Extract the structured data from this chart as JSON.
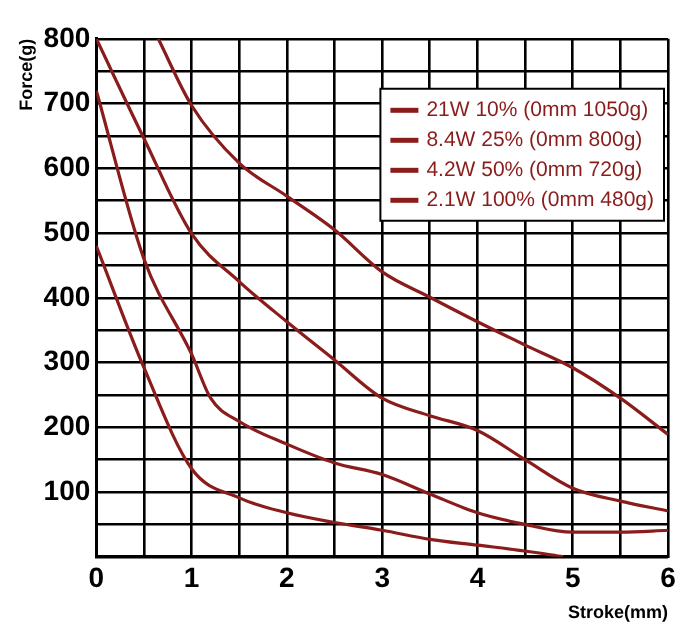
{
  "chart_data": {
    "type": "line",
    "xlabel": "Stroke(mm)",
    "ylabel": "Force(g)",
    "xlim": [
      0,
      6
    ],
    "ylim": [
      0,
      800
    ],
    "xticks": [
      0,
      {
        "value": 0.5,
        "label": null
      },
      1,
      {
        "value": 1.5,
        "label": null
      },
      2,
      {
        "value": 2.5,
        "label": null
      },
      3,
      {
        "value": 3.5,
        "label": null
      },
      4,
      {
        "value": 4.5,
        "label": null
      },
      5,
      {
        "value": 5.5,
        "label": null
      },
      6
    ],
    "yticks": [
      {
        "value": 0,
        "label": null
      },
      {
        "value": 50,
        "label": null
      },
      100,
      {
        "value": 150,
        "label": null
      },
      200,
      {
        "value": 250,
        "label": null
      },
      300,
      {
        "value": 350,
        "label": null
      },
      400,
      {
        "value": 450,
        "label": null
      },
      500,
      {
        "value": 550,
        "label": null
      },
      600,
      {
        "value": 650,
        "label": null
      },
      700,
      {
        "value": 750,
        "label": null
      },
      800
    ],
    "grid": true,
    "legend": "top right",
    "marker": "none",
    "line_style": "solid",
    "series": [
      {
        "name": "21W 10% (0mm 1050g)",
        "color": "#8b1c1c",
        "x": [
          0.65,
          1,
          1.5,
          2,
          2.5,
          3,
          3.5,
          4,
          4.5,
          5,
          5.5,
          6
        ],
        "values": [
          800,
          697,
          608,
          557,
          505,
          440,
          401,
          363,
          327,
          292,
          245,
          189
        ]
      },
      {
        "name": "8.4W 25% (0mm 800g)",
        "color": "#8b1c1c",
        "x": [
          0,
          0.5,
          1,
          1.5,
          2,
          2.5,
          3,
          3.5,
          4,
          4.5,
          5,
          5.5,
          6
        ],
        "values": [
          800,
          646,
          499,
          425,
          363,
          304,
          245,
          218,
          195,
          150,
          106,
          86,
          71
        ]
      },
      {
        "name": "4.2W 50% (0mm 720g)",
        "color": "#8b1c1c",
        "x": [
          0,
          0.5,
          1,
          1.2,
          1.5,
          2,
          2.5,
          3,
          3.5,
          4,
          4.5,
          5,
          5.5,
          6
        ],
        "values": [
          720,
          460,
          313,
          245,
          209,
          174,
          145,
          127,
          97,
          68,
          50,
          38,
          38,
          41
        ]
      },
      {
        "name": "2.1W 100% (0mm 480g)",
        "color": "#8b1c1c",
        "x": [
          0,
          0.5,
          1,
          1.5,
          2,
          2.5,
          3,
          3.5,
          4,
          4.5,
          4.9
        ],
        "values": [
          480,
          292,
          136,
          91,
          68,
          53,
          41,
          27,
          18,
          9,
          0
        ]
      }
    ]
  }
}
